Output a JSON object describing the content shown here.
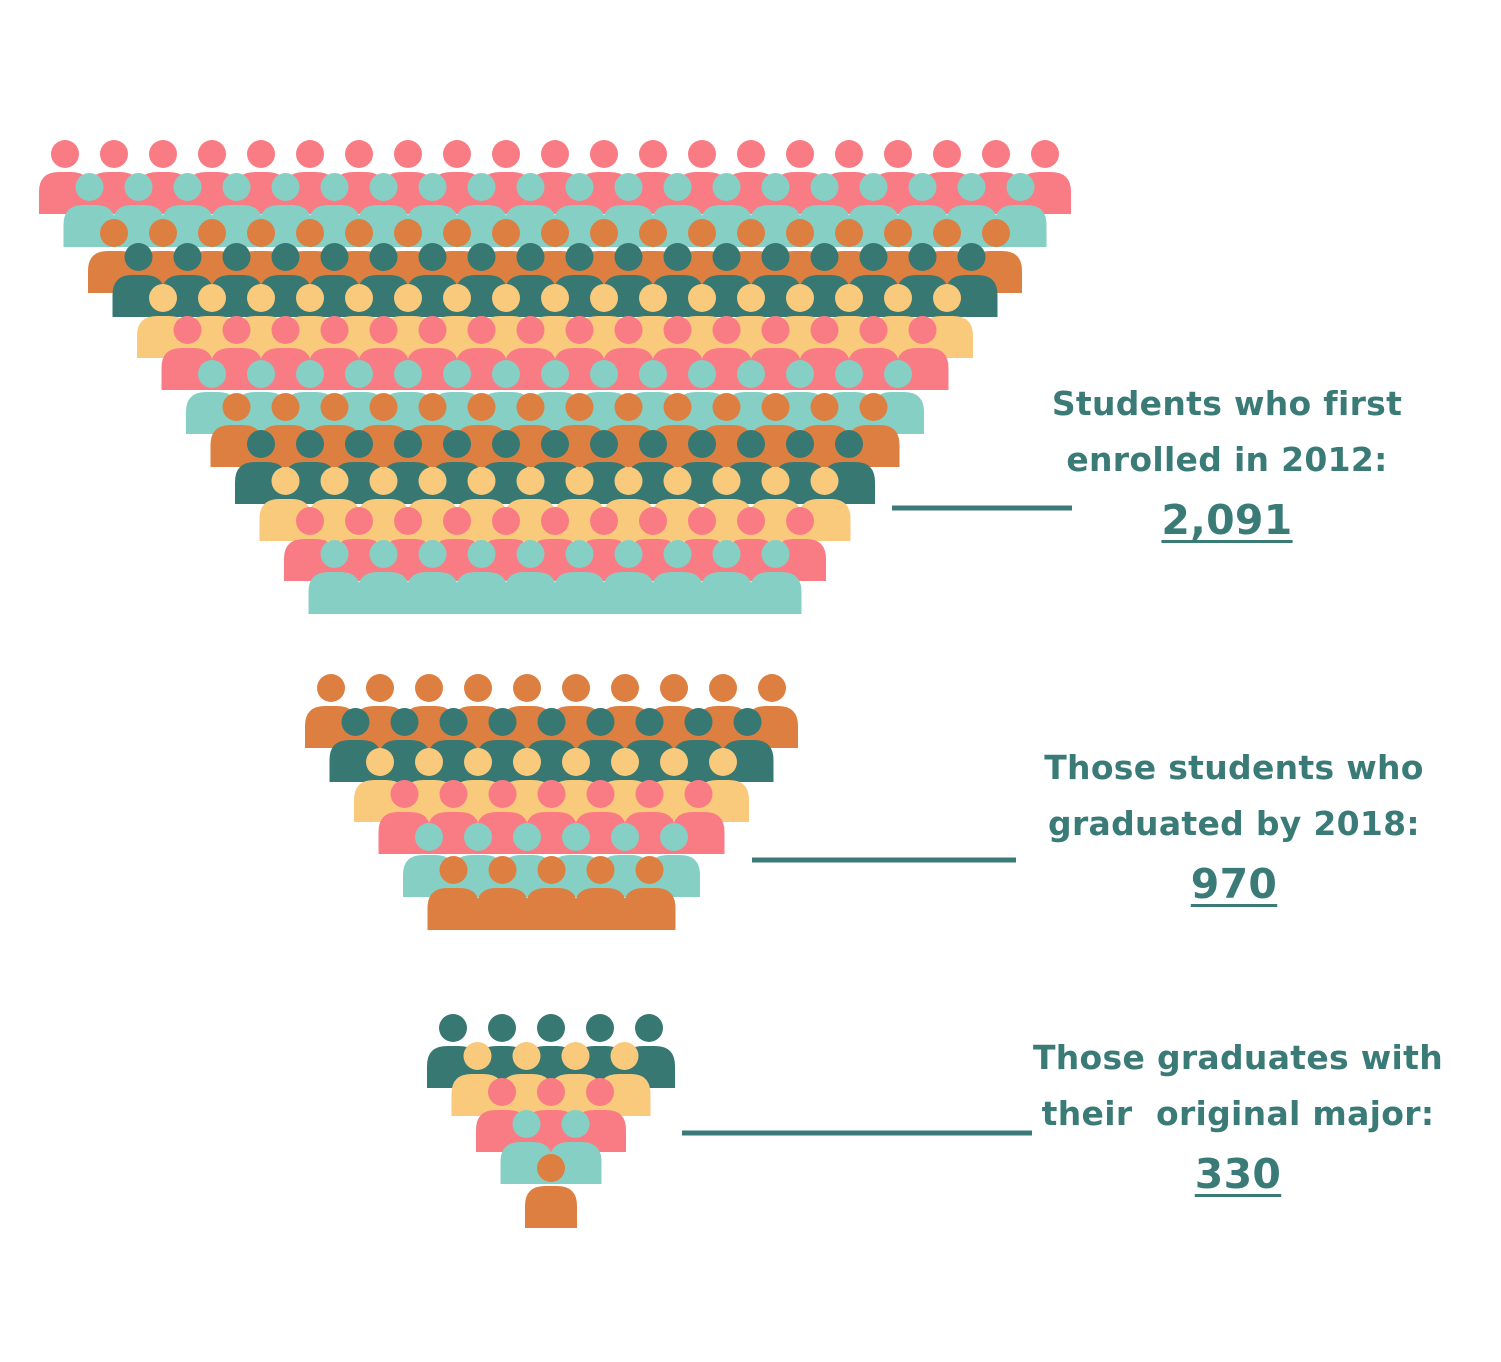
{
  "colors": {
    "text": "#3a7b77",
    "connector": "#3a7b77",
    "coral": "#f97c85",
    "mint": "#85cfc4",
    "orange": "#dd7f41",
    "teal": "#377873",
    "yellow": "#f9c97c"
  },
  "icon": "person-icon",
  "groups": [
    {
      "id": "enrolled",
      "line1": "Students who first",
      "line2": "enrolled in 2012:",
      "value": "2,091",
      "count": 2091
    },
    {
      "id": "graduated",
      "line1": "Those students who",
      "line2": "graduated by 2018:",
      "value": "970",
      "count": 970
    },
    {
      "id": "original-major",
      "line1": "Those graduates with",
      "line2": "their  original major:",
      "value": "330",
      "count": 330
    }
  ]
}
